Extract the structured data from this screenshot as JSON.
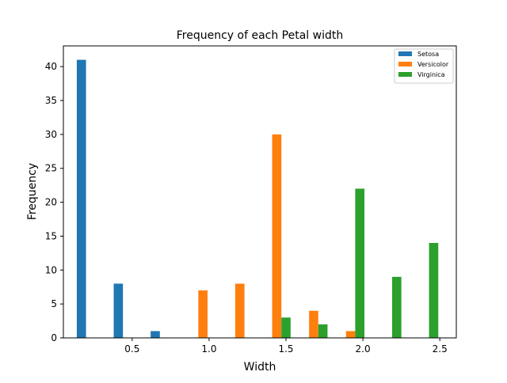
{
  "chart_data": {
    "type": "bar",
    "title": "Frequency of each Petal width",
    "xlabel": "Width",
    "ylabel": "Frequency",
    "xlim": [
      0.0528,
      2.6072
    ],
    "ylim": [
      0,
      43.05
    ],
    "xticks": [
      0.5,
      1.0,
      1.5,
      2.0,
      2.5
    ],
    "xtick_labels": [
      "0.5",
      "1.0",
      "1.5",
      "2.0",
      "2.5"
    ],
    "yticks": [
      0,
      5,
      10,
      15,
      20,
      25,
      30,
      35,
      40
    ],
    "ytick_labels": [
      "0",
      "5",
      "10",
      "15",
      "20",
      "25",
      "30",
      "35",
      "40"
    ],
    "grid": false,
    "legend_position": "top-right",
    "series": [
      {
        "name": "Setosa",
        "color": "#1f77b4",
        "x": [
          0.17,
          0.41,
          0.65
        ],
        "values": [
          41,
          8,
          1
        ]
      },
      {
        "name": "Versicolor",
        "color": "#ff7f0e",
        "x": [
          0.96,
          1.2,
          1.44,
          1.68,
          1.92
        ],
        "values": [
          7,
          8,
          30,
          4,
          1
        ]
      },
      {
        "name": "Virginica",
        "color": "#2ca02c",
        "x": [
          1.5,
          1.74,
          1.98,
          2.22,
          2.46
        ],
        "values": [
          3,
          2,
          22,
          9,
          14
        ]
      }
    ],
    "bar_width": 0.06
  }
}
